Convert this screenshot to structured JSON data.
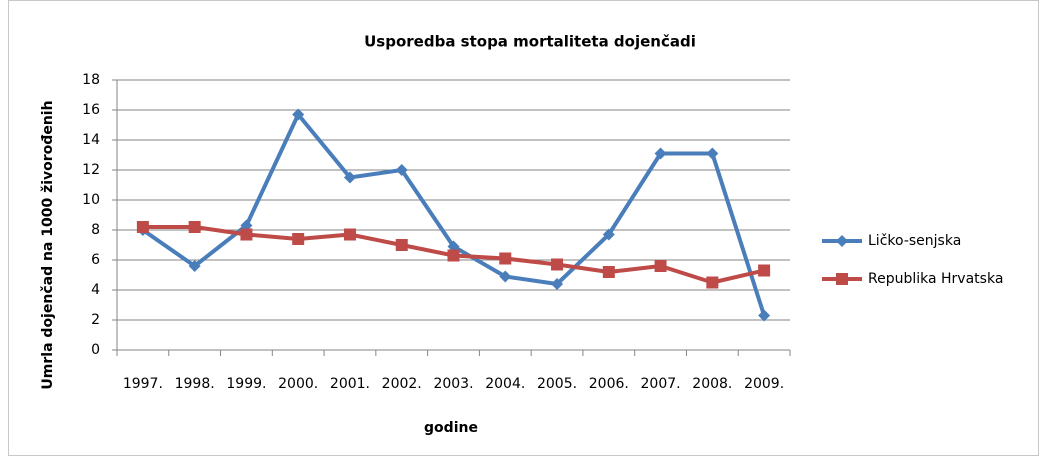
{
  "chart_data": {
    "type": "line",
    "title": "Usporedba stopa mortaliteta dojenčadi",
    "x_label": "godine",
    "y_label": "Umrla dojenčad  na  1000 živorođenih",
    "categories": [
      "1997.",
      "1998.",
      "1999.",
      "2000.",
      "2001.",
      "2002.",
      "2003.",
      "2004.",
      "2005.",
      "2006.",
      "2007.",
      "2008.",
      "2009."
    ],
    "series": [
      {
        "name": "Ličko-senjska",
        "color": "#4a7ebb",
        "marker": "diamond",
        "values": [
          8.0,
          5.6,
          8.3,
          15.7,
          11.5,
          12.0,
          6.9,
          4.9,
          4.4,
          7.7,
          13.1,
          13.1,
          2.3
        ]
      },
      {
        "name": "Republika Hrvatska",
        "color": "#be4b48",
        "marker": "square",
        "values": [
          8.2,
          8.2,
          7.7,
          7.4,
          7.7,
          7.0,
          6.3,
          6.1,
          5.7,
          5.2,
          5.6,
          4.5,
          5.3
        ]
      }
    ],
    "ylim": [
      0,
      18
    ],
    "yticks": [
      0,
      2,
      4,
      6,
      8,
      10,
      12,
      14,
      16,
      18
    ],
    "grid": true,
    "legend": "right"
  }
}
